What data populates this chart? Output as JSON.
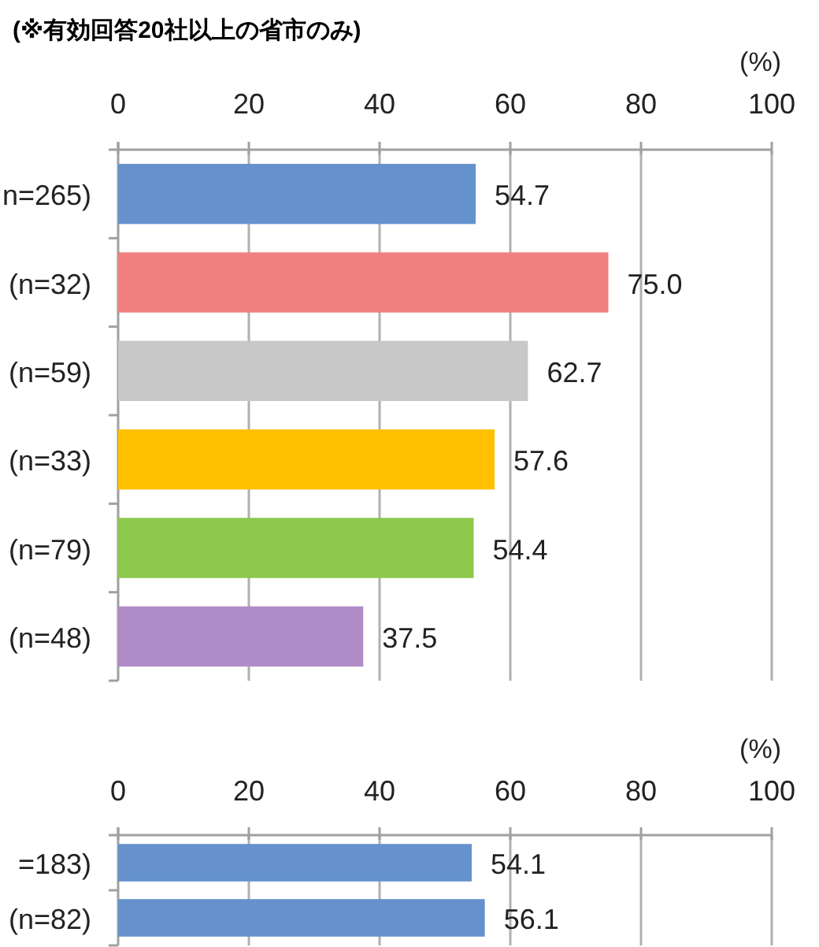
{
  "chart_data": [
    {
      "type": "bar",
      "orientation": "horizontal",
      "title": "(※有効回答20社以上の省市のみ)",
      "xlabel": "(%)",
      "categories": [
        "n=265)",
        "(n=32)",
        "(n=59)",
        "(n=33)",
        "(n=79)",
        "(n=48)"
      ],
      "values": [
        54.7,
        75.0,
        62.7,
        57.6,
        54.4,
        37.5
      ],
      "value_labels": [
        "54.7",
        "75.0",
        "62.7",
        "57.6",
        "54.4",
        "37.5"
      ],
      "colors": [
        "#6592cc",
        "#f08080",
        "#c8c8c8",
        "#ffc000",
        "#8cc84b",
        "#b08cc8"
      ],
      "xlim": [
        0,
        100
      ],
      "xticks": [
        0,
        20,
        40,
        60,
        80,
        100
      ],
      "grid": "x"
    },
    {
      "type": "bar",
      "orientation": "horizontal",
      "xlabel": "(%)",
      "categories": [
        "=183)",
        "(n=82)"
      ],
      "values": [
        54.1,
        56.1
      ],
      "value_labels": [
        "54.1",
        "56.1"
      ],
      "colors": [
        "#6592cc",
        "#6592cc"
      ],
      "xlim": [
        0,
        100
      ],
      "xticks": [
        0,
        20,
        40,
        60,
        80,
        100
      ],
      "grid": "x"
    }
  ]
}
